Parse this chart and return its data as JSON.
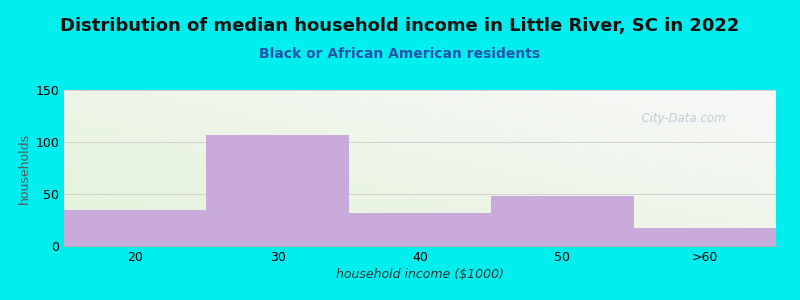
{
  "title": "Distribution of median household income in Little River, SC in 2022",
  "subtitle": "Black or African American residents",
  "xlabel": "household income ($1000)",
  "ylabel": "households",
  "categories": [
    "20",
    "30",
    "40",
    "50",
    ">60"
  ],
  "values": [
    35,
    107,
    32,
    48,
    17
  ],
  "bar_color": "#C8AADB",
  "background_color": "#00EEEE",
  "plot_bg_color_topleft": "#E2F2D8",
  "plot_bg_color_bottomright": "#F8F8F8",
  "ylim": [
    0,
    150
  ],
  "yticks": [
    0,
    50,
    100,
    150
  ],
  "title_fontsize": 13,
  "subtitle_fontsize": 10,
  "axis_label_fontsize": 9,
  "tick_fontsize": 9,
  "watermark": "  City-Data.com",
  "watermark_color": "#AABBCC",
  "subtitle_color": "#2255AA",
  "title_color": "#111111",
  "ylabel_color": "#555555",
  "xlabel_color": "#333333"
}
